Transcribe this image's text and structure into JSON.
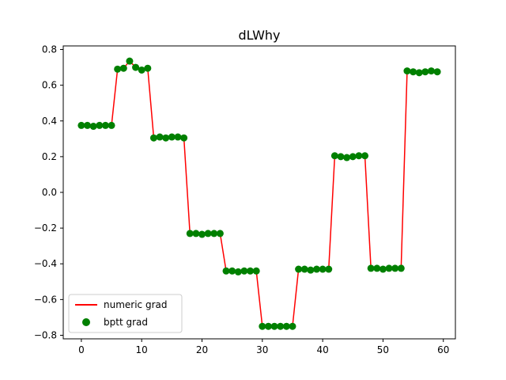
{
  "chart_data": {
    "type": "line",
    "title": "dLWhy",
    "xlabel": "",
    "ylabel": "",
    "xlim": [
      -3,
      62
    ],
    "ylim": [
      -0.82,
      0.82
    ],
    "x_ticks": [
      0,
      10,
      20,
      30,
      40,
      50,
      60
    ],
    "y_ticks": [
      -0.8,
      -0.6,
      -0.4,
      -0.2,
      0.0,
      0.2,
      0.4,
      0.6,
      0.8
    ],
    "legend_position": "lower-left",
    "x": [
      0,
      1,
      2,
      3,
      4,
      5,
      6,
      7,
      8,
      9,
      10,
      11,
      12,
      13,
      14,
      15,
      16,
      17,
      18,
      19,
      20,
      21,
      22,
      23,
      24,
      25,
      26,
      27,
      28,
      29,
      30,
      31,
      32,
      33,
      34,
      35,
      36,
      37,
      38,
      39,
      40,
      41,
      42,
      43,
      44,
      45,
      46,
      47,
      48,
      49,
      50,
      51,
      52,
      53,
      54,
      55,
      56,
      57,
      58,
      59
    ],
    "series": [
      {
        "name": "numeric grad",
        "style": "line",
        "color": "#ff0000",
        "values": [
          0.375,
          0.375,
          0.37,
          0.375,
          0.375,
          0.375,
          0.69,
          0.695,
          0.735,
          0.7,
          0.685,
          0.695,
          0.305,
          0.31,
          0.305,
          0.31,
          0.31,
          0.305,
          -0.23,
          -0.23,
          -0.235,
          -0.23,
          -0.23,
          -0.23,
          -0.44,
          -0.44,
          -0.445,
          -0.44,
          -0.44,
          -0.44,
          -0.75,
          -0.75,
          -0.75,
          -0.75,
          -0.75,
          -0.75,
          -0.43,
          -0.43,
          -0.435,
          -0.43,
          -0.43,
          -0.43,
          0.205,
          0.2,
          0.195,
          0.2,
          0.205,
          0.205,
          -0.425,
          -0.425,
          -0.43,
          -0.425,
          -0.425,
          -0.425,
          0.68,
          0.675,
          0.67,
          0.675,
          0.68,
          0.675
        ]
      },
      {
        "name": "bptt grad",
        "style": "marker",
        "color": "#008000",
        "values": [
          0.375,
          0.375,
          0.37,
          0.375,
          0.375,
          0.375,
          0.69,
          0.695,
          0.735,
          0.7,
          0.685,
          0.695,
          0.305,
          0.31,
          0.305,
          0.31,
          0.31,
          0.305,
          -0.23,
          -0.23,
          -0.235,
          -0.23,
          -0.23,
          -0.23,
          -0.44,
          -0.44,
          -0.445,
          -0.44,
          -0.44,
          -0.44,
          -0.75,
          -0.75,
          -0.75,
          -0.75,
          -0.75,
          -0.75,
          -0.43,
          -0.43,
          -0.435,
          -0.43,
          -0.43,
          -0.43,
          0.205,
          0.2,
          0.195,
          0.2,
          0.205,
          0.205,
          -0.425,
          -0.425,
          -0.43,
          -0.425,
          -0.425,
          -0.425,
          0.68,
          0.675,
          0.67,
          0.675,
          0.68,
          0.675
        ]
      }
    ]
  }
}
